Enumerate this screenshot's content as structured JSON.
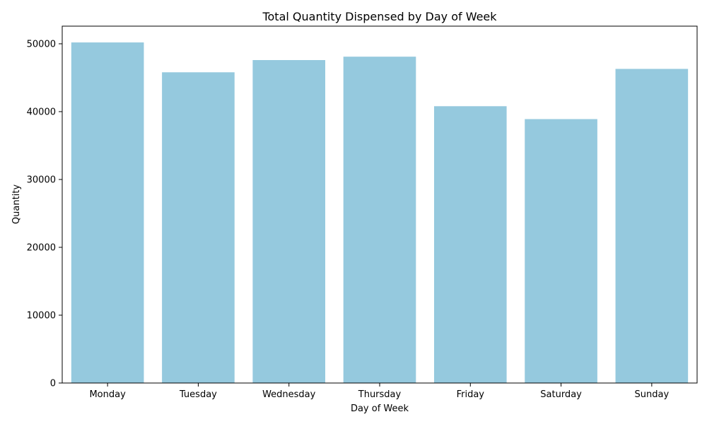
{
  "chart_data": {
    "type": "bar",
    "title": "Total Quantity Dispensed by Day of Week",
    "xlabel": "Day of Week",
    "ylabel": "Quantity",
    "categories": [
      "Monday",
      "Tuesday",
      "Wednesday",
      "Thursday",
      "Friday",
      "Saturday",
      "Sunday"
    ],
    "values": [
      50200,
      45800,
      47600,
      48100,
      40800,
      38900,
      46300
    ],
    "ylim": [
      0,
      52600
    ],
    "yticks": [
      0,
      10000,
      20000,
      30000,
      40000,
      50000
    ],
    "ytick_labels": [
      "0",
      "10000",
      "20000",
      "30000",
      "40000",
      "50000"
    ],
    "bar_color": "#95c9de",
    "grid": false,
    "legend": "none"
  }
}
